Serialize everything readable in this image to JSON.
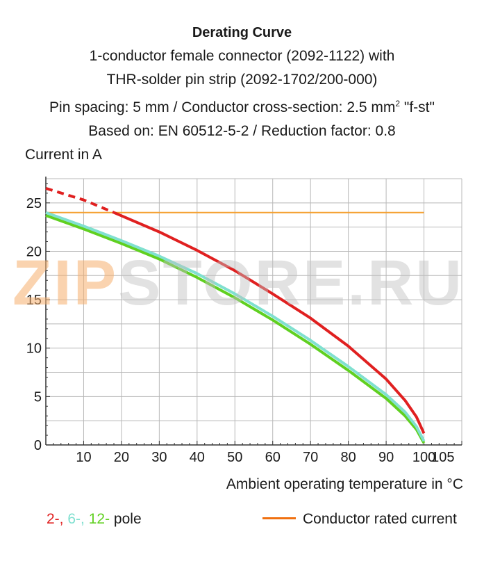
{
  "header": {
    "title": "Derating Curve",
    "line1": "1-conductor female connector (2092-1122) with",
    "line2": "THR-solder pin strip (2092-1702/200-000)",
    "line3_prefix": "Pin spacing: 5 mm / Conductor cross-section: 2.5 mm",
    "line3_sup": "2",
    "line3_suffix": " \"f-st\"",
    "line4": "Based on: EN 60512-5-2 / Reduction factor: 0.8"
  },
  "watermark": {
    "part1": "ZIP",
    "part2": "STORE.RU"
  },
  "legend": {
    "pole_2": "2-,",
    "pole_6": "6-,",
    "pole_12": "12-",
    "pole_suffix": "pole",
    "rated_label": "Conductor rated current"
  },
  "colors": {
    "pole_2": "#e02020",
    "pole_6": "#80e0d0",
    "pole_12": "#60d020",
    "rated": "#f5a030",
    "rated_legend": "#f07010",
    "grid": "#b8b8b8"
  },
  "chart_data": {
    "type": "line",
    "title": "Derating Curve",
    "xlabel": "Ambient operating temperature in °C",
    "ylabel": "Current in A",
    "xlim": [
      0,
      110
    ],
    "ylim": [
      0,
      27.5
    ],
    "xticks": [
      10,
      20,
      30,
      40,
      50,
      60,
      70,
      80,
      90,
      100,
      105
    ],
    "yticks": [
      0,
      5,
      10,
      15,
      20,
      25
    ],
    "grid": true,
    "series": [
      {
        "name": "2-pole",
        "color": "#e02020",
        "dashed_x": [
          0,
          10,
          18
        ],
        "dashed_y": [
          26.5,
          25.3,
          24.0
        ],
        "x": [
          18,
          30,
          40,
          50,
          60,
          70,
          80,
          90,
          95,
          98,
          100
        ],
        "y": [
          24.0,
          22.0,
          20.1,
          18.0,
          15.6,
          13.1,
          10.2,
          6.8,
          4.6,
          2.9,
          1.2
        ]
      },
      {
        "name": "6-pole",
        "color": "#80e0d0",
        "x": [
          0,
          10,
          20,
          30,
          40,
          50,
          60,
          70,
          80,
          90,
          95,
          98,
          100
        ],
        "y": [
          24.0,
          22.6,
          21.1,
          19.5,
          17.7,
          15.6,
          13.3,
          10.8,
          8.1,
          5.2,
          3.4,
          1.9,
          0.4
        ]
      },
      {
        "name": "12-pole",
        "color": "#60d020",
        "x": [
          0,
          10,
          20,
          30,
          40,
          50,
          60,
          70,
          80,
          90,
          95,
          98,
          100
        ],
        "y": [
          23.7,
          22.3,
          20.8,
          19.2,
          17.3,
          15.2,
          12.9,
          10.4,
          7.7,
          4.8,
          3.0,
          1.6,
          0.2
        ]
      },
      {
        "name": "Conductor rated current",
        "color": "#f5a030",
        "x": [
          0,
          100
        ],
        "y": [
          24,
          24
        ]
      }
    ]
  }
}
